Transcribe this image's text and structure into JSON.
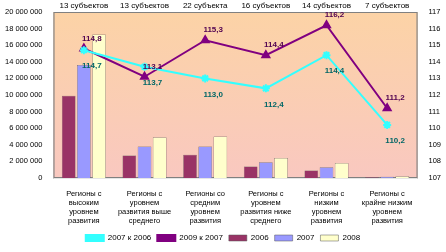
{
  "chart_data": {
    "type": "bar",
    "categories": [
      "Регионы с высоким уровнем развития",
      "Регионы с уровнем развития выше среднего",
      "Регионы со средним уровнем развития",
      "Регионы с уровнем развития ниже среднего",
      "Регионы с низким уровнем развития",
      "Регионы с крайне низким уровнем развития"
    ],
    "annotations": [
      "13 субъектов",
      "13 субъектов",
      "22 субъекта",
      "16 субъектов",
      "14 субъектов",
      "7 субъектов"
    ],
    "series": [
      {
        "name": "2006",
        "color": "#993366",
        "values": [
          9900000,
          2700000,
          2800000,
          1400000,
          900000,
          100000
        ]
      },
      {
        "name": "2007",
        "color": "#9999ff",
        "values": [
          13600000,
          3800000,
          3800000,
          1900000,
          1300000,
          150000
        ]
      },
      {
        "name": "2008",
        "color": "#ffffcc",
        "values": [
          17300000,
          4900000,
          5000000,
          2400000,
          1800000,
          200000
        ]
      },
      {
        "name": "2007 к 2006",
        "type": "line",
        "axis": "y2",
        "color": "#33ffff",
        "marker": "star",
        "data_labels": true,
        "values": [
          114.7,
          113.7,
          113.0,
          112.4,
          114.4,
          110.2
        ],
        "value_labels": [
          "114,7",
          "113,7",
          "113,0",
          "112,4",
          "114,4",
          "110,2"
        ]
      },
      {
        "name": "2009 к 2007",
        "type": "line",
        "axis": "y2",
        "color": "#800080",
        "marker": "triangle",
        "data_labels": true,
        "values": [
          114.8,
          113.1,
          115.3,
          114.4,
          116.2,
          111.2
        ],
        "value_labels": [
          "114,8",
          "113,1",
          "115,3",
          "114,4",
          "116,2",
          "111,2"
        ]
      }
    ],
    "ylim": [
      0,
      20000000
    ],
    "yticks": [
      0,
      {
        "value": 2000000,
        "label": "2 000 000"
      },
      {
        "value": 4000000,
        "label": "4 000 000"
      },
      {
        "value": 6000000,
        "label": "6 000 000"
      },
      {
        "value": 8000000,
        "label": "8 000 000"
      },
      {
        "value": 10000000,
        "label": "10 000 000"
      },
      {
        "value": 12000000,
        "label": "12 000 000"
      },
      {
        "value": 14000000,
        "label": "14 000 000"
      },
      {
        "value": 16000000,
        "label": "16 000 000"
      },
      {
        "value": 18000000,
        "label": "18 000 000"
      },
      {
        "value": 20000000,
        "label": "20 000 000"
      }
    ],
    "y2lim": [
      107,
      117
    ],
    "y2ticks": [
      107,
      108,
      109,
      110,
      111,
      112,
      113,
      114,
      115,
      116,
      117
    ],
    "grid": false,
    "legend": "bottom"
  }
}
